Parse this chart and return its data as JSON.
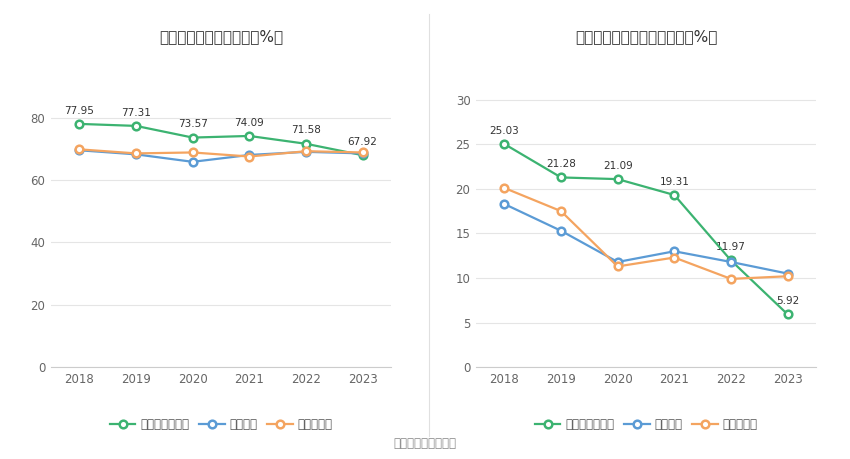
{
  "chart1": {
    "title": "近年来资产负债率情况（%）",
    "years": [
      2018,
      2019,
      2020,
      2021,
      2022,
      2023
    ],
    "company": [
      77.95,
      77.31,
      73.57,
      74.09,
      71.58,
      67.92
    ],
    "industry_mean": [
      69.5,
      68.2,
      65.8,
      68.0,
      69.0,
      68.5
    ],
    "industry_median": [
      69.8,
      68.5,
      68.8,
      67.5,
      69.2,
      68.8
    ],
    "ylim": [
      0,
      100
    ],
    "yticks": [
      0,
      20,
      40,
      60,
      80
    ],
    "legend": [
      "公司资产负债率",
      "行业均值",
      "行业中位数"
    ]
  },
  "chart2": {
    "title": "近年来有息资产负债率情况（%）",
    "years": [
      2018,
      2019,
      2020,
      2021,
      2022,
      2023
    ],
    "company": [
      25.03,
      21.28,
      21.09,
      19.31,
      11.97,
      5.92
    ],
    "industry_mean": [
      18.3,
      15.3,
      11.8,
      13.0,
      11.8,
      10.5
    ],
    "industry_median": [
      20.1,
      17.5,
      11.3,
      12.3,
      9.9,
      10.2
    ],
    "ylim": [
      0,
      35
    ],
    "yticks": [
      0,
      5,
      10,
      15,
      20,
      25,
      30
    ],
    "legend": [
      "有息资产负债率",
      "行业均值",
      "行业中位数"
    ]
  },
  "colors": {
    "green": "#3cb371",
    "blue": "#5b9bd5",
    "orange": "#f4a460"
  },
  "source_text": "数据来源：恒生聚源",
  "bg_color": "#ffffff",
  "grid_color": "#e5e5e5"
}
